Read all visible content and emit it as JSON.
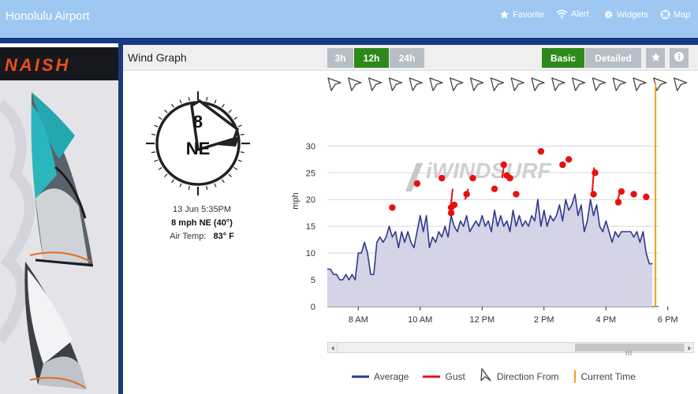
{
  "app": {
    "title": "Honolulu Airport"
  },
  "nav": [
    {
      "label": "Favorite",
      "icon": "star-icon"
    },
    {
      "label": "Alert",
      "icon": "wifi-icon"
    },
    {
      "label": "Widgets",
      "icon": "gear-icon"
    },
    {
      "label": "Map",
      "icon": "crosshair-icon"
    }
  ],
  "sidebar": {
    "brand": "NAISH"
  },
  "panel": {
    "title": "Wind Graph",
    "ranges": [
      "3h",
      "12h",
      "24h"
    ],
    "active_range": "12h",
    "views": [
      "Basic",
      "Detailed"
    ],
    "active_view": "Basic"
  },
  "current": {
    "speed": "8",
    "direction": "NE",
    "datetime": "13 Jun 5:35PM",
    "summary": "8 mph NE (40°)",
    "air_temp_label": "Air Temp:",
    "air_temp_value": "83° F"
  },
  "watermark": "iWINDSURF",
  "colors": {
    "accent_green": "#2d8a1a",
    "average": "#2e3a8c",
    "gust": "#e81010",
    "current_time": "#f0a020",
    "fill": "#d4d4e6"
  },
  "legend": {
    "average": "Average",
    "gust": "Gust",
    "direction": "Direction From",
    "current_time": "Current Time"
  },
  "chart_data": {
    "type": "area",
    "ylabel": "mph",
    "ylim": [
      0,
      33
    ],
    "yticks": [
      0,
      5,
      10,
      15,
      20,
      25,
      30
    ],
    "xlim": [
      7,
      17.7
    ],
    "xticks": [
      {
        "v": 8,
        "label": "8 AM"
      },
      {
        "v": 10,
        "label": "10 AM"
      },
      {
        "v": 12,
        "label": "12 PM"
      },
      {
        "v": 14,
        "label": "2 PM"
      },
      {
        "v": 16,
        "label": "4 PM"
      },
      {
        "v": 18,
        "label": "6 PM"
      }
    ],
    "current_time": 17.6,
    "average": [
      [
        7.0,
        7
      ],
      [
        7.1,
        7
      ],
      [
        7.2,
        6
      ],
      [
        7.3,
        6
      ],
      [
        7.4,
        5
      ],
      [
        7.5,
        5
      ],
      [
        7.6,
        6
      ],
      [
        7.7,
        5
      ],
      [
        7.8,
        6
      ],
      [
        7.9,
        5
      ],
      [
        8.0,
        10
      ],
      [
        8.1,
        10
      ],
      [
        8.2,
        12
      ],
      [
        8.3,
        10
      ],
      [
        8.4,
        6
      ],
      [
        8.5,
        6
      ],
      [
        8.6,
        12
      ],
      [
        8.7,
        13
      ],
      [
        8.8,
        12
      ],
      [
        8.9,
        13
      ],
      [
        9.0,
        15
      ],
      [
        9.1,
        13
      ],
      [
        9.2,
        14
      ],
      [
        9.3,
        11
      ],
      [
        9.4,
        14
      ],
      [
        9.5,
        12
      ],
      [
        9.6,
        14
      ],
      [
        9.7,
        12
      ],
      [
        9.8,
        11
      ],
      [
        9.9,
        14
      ],
      [
        10.0,
        17
      ],
      [
        10.1,
        14
      ],
      [
        10.2,
        17
      ],
      [
        10.3,
        11
      ],
      [
        10.4,
        13
      ],
      [
        10.5,
        12
      ],
      [
        10.6,
        14
      ],
      [
        10.7,
        13
      ],
      [
        10.8,
        15
      ],
      [
        10.9,
        13
      ],
      [
        11.0,
        17
      ],
      [
        11.1,
        15
      ],
      [
        11.2,
        14
      ],
      [
        11.3,
        16
      ],
      [
        11.4,
        15
      ],
      [
        11.5,
        17
      ],
      [
        11.6,
        14
      ],
      [
        11.7,
        15
      ],
      [
        11.8,
        16
      ],
      [
        11.9,
        15
      ],
      [
        12.0,
        17
      ],
      [
        12.1,
        15
      ],
      [
        12.2,
        16
      ],
      [
        12.3,
        14
      ],
      [
        12.4,
        18
      ],
      [
        12.5,
        15
      ],
      [
        12.6,
        17
      ],
      [
        12.7,
        15
      ],
      [
        12.8,
        16
      ],
      [
        12.9,
        14
      ],
      [
        13.0,
        18
      ],
      [
        13.1,
        15
      ],
      [
        13.2,
        17
      ],
      [
        13.3,
        15
      ],
      [
        13.4,
        16
      ],
      [
        13.5,
        15
      ],
      [
        13.6,
        17
      ],
      [
        13.7,
        16
      ],
      [
        13.8,
        20
      ],
      [
        13.9,
        15
      ],
      [
        14.0,
        18
      ],
      [
        14.1,
        15
      ],
      [
        14.2,
        17
      ],
      [
        14.3,
        16
      ],
      [
        14.4,
        17
      ],
      [
        14.5,
        19
      ],
      [
        14.6,
        16
      ],
      [
        14.7,
        20
      ],
      [
        14.8,
        18
      ],
      [
        14.9,
        19
      ],
      [
        15.0,
        21
      ],
      [
        15.1,
        17
      ],
      [
        15.2,
        19
      ],
      [
        15.3,
        14
      ],
      [
        15.4,
        16
      ],
      [
        15.5,
        20
      ],
      [
        15.6,
        17
      ],
      [
        15.7,
        19
      ],
      [
        15.8,
        15
      ],
      [
        15.9,
        14
      ],
      [
        16.0,
        16
      ],
      [
        16.1,
        14
      ],
      [
        16.2,
        12
      ],
      [
        16.3,
        14
      ],
      [
        16.4,
        13
      ],
      [
        16.5,
        14
      ],
      [
        16.6,
        14
      ],
      [
        16.7,
        14
      ],
      [
        16.8,
        14
      ],
      [
        16.9,
        13
      ],
      [
        17.0,
        14
      ],
      [
        17.1,
        12
      ],
      [
        17.2,
        14
      ],
      [
        17.3,
        10
      ],
      [
        17.4,
        8
      ],
      [
        17.5,
        8
      ]
    ],
    "gust": [
      [
        9.1,
        18.5
      ],
      [
        9.9,
        23
      ],
      [
        10.7,
        24
      ],
      [
        11.0,
        17.5
      ],
      [
        11.0,
        18.5
      ],
      [
        11.1,
        19
      ],
      [
        11.5,
        21
      ],
      [
        11.7,
        24
      ],
      [
        12.4,
        22
      ],
      [
        12.7,
        26.5
      ],
      [
        12.8,
        24.5
      ],
      [
        12.9,
        24
      ],
      [
        13.1,
        21
      ],
      [
        13.9,
        29
      ],
      [
        14.6,
        26.5
      ],
      [
        14.8,
        27.5
      ],
      [
        15.6,
        21
      ],
      [
        15.65,
        25
      ],
      [
        16.4,
        19.5
      ],
      [
        16.5,
        21.5
      ],
      [
        16.9,
        21
      ],
      [
        17.3,
        20.5
      ]
    ],
    "direction_markers": 18
  }
}
